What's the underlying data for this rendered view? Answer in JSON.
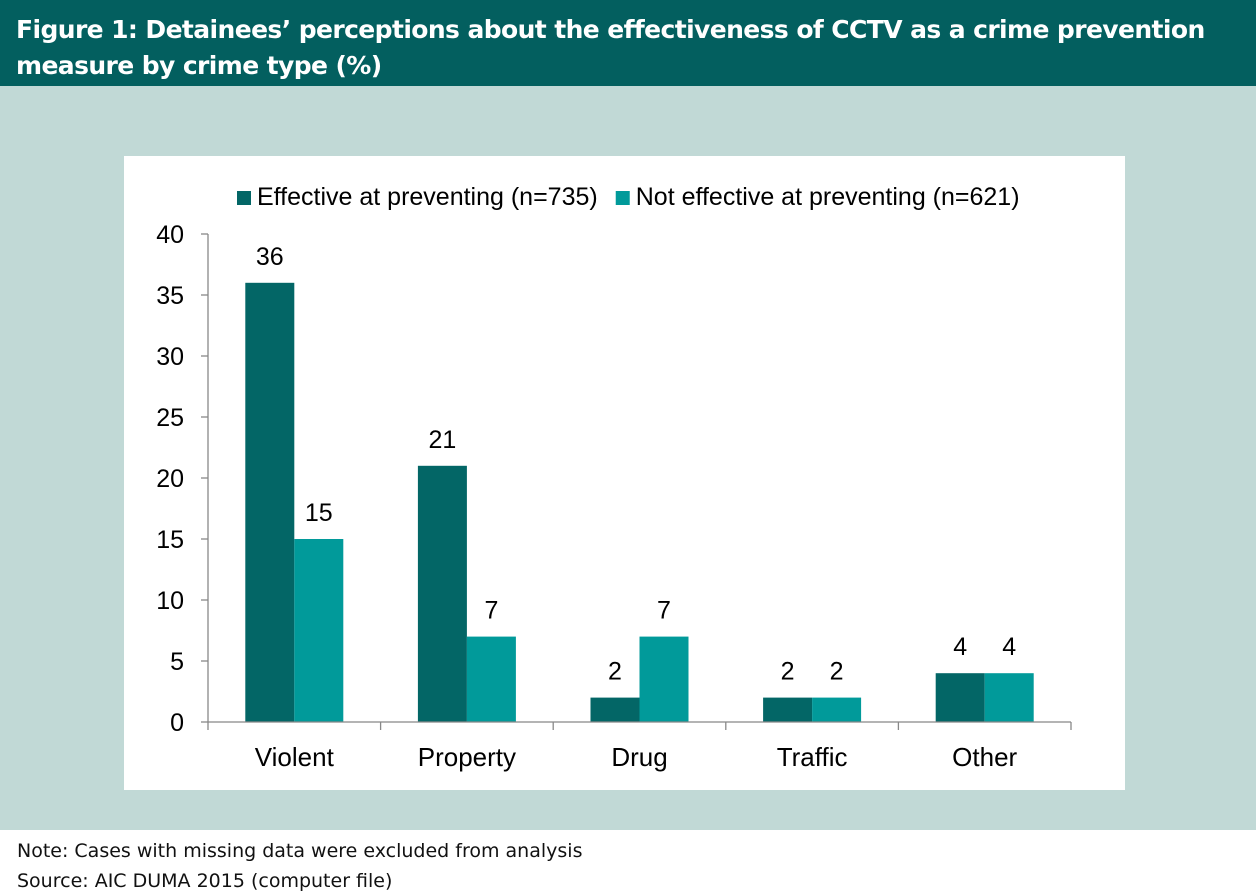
{
  "header": {
    "title": "Figure 1: Detainees’ perceptions about the effectiveness of CCTV as a crime prevention measure by crime type (%)"
  },
  "footer": {
    "note": "Note: Cases with missing data were excluded from analysis",
    "source": "Source: AIC DUMA 2015 (computer file)"
  },
  "colors": {
    "header_bg": "#035f5f",
    "panel_bg": "#c1d9d6",
    "series_effective": "#036666",
    "series_not_effective": "#019a9a"
  },
  "chart_data": {
    "type": "bar",
    "title": "",
    "xlabel": "",
    "ylabel": "",
    "categories": [
      "Violent",
      "Property",
      "Drug",
      "Traffic",
      "Other"
    ],
    "series": [
      {
        "name": "Effective at preventing (n=735)",
        "values": [
          36,
          21,
          2,
          2,
          4
        ],
        "color": "#036666"
      },
      {
        "name": "Not effective at preventing (n=621)",
        "values": [
          15,
          7,
          7,
          2,
          4
        ],
        "color": "#019a9a"
      }
    ],
    "ylim": [
      0,
      40
    ],
    "yticks": [
      0,
      5,
      10,
      15,
      20,
      25,
      30,
      35,
      40
    ],
    "data_labels": true,
    "grid": false,
    "legend_position": "top"
  }
}
